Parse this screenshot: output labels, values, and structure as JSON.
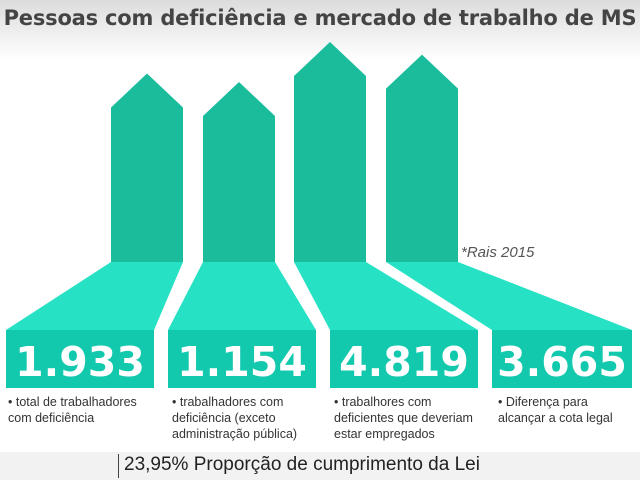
{
  "title": "Pessoas com deficiência e mercado de trabalho de MS",
  "source_note": "*Rais 2015",
  "footer": "23,95% Proporção de cumprimento da Lei",
  "colors": {
    "arrow_dark": "#1abc9c",
    "arrow_light": "#27e1c4",
    "number_box": "#12c9ad",
    "text": "#333333"
  },
  "chart_data": {
    "type": "bar",
    "categories": [
      "• total de trabalhadores com deficiência",
      "• trabalhadores com deficiência (exceto administração pública)",
      "• trabalhores com deficientes que deveriam estar empregados",
      "• Diferença para alcançar a cota legal"
    ],
    "values": [
      1933,
      1154,
      4819,
      3665
    ],
    "value_labels": [
      "1.933",
      "1.154",
      "4.819",
      "3.665"
    ],
    "descriptions": [
      [
        "• total de trabalhadores",
        "com deficiência"
      ],
      [
        "• trabalhadores com",
        "deficiência (exceto",
        "administração pública)"
      ],
      [
        "• trabalhores com",
        "deficientes que deveriam",
        "estar empregados"
      ],
      [
        "• Diferença para",
        "alcançar a cota legal"
      ]
    ]
  }
}
